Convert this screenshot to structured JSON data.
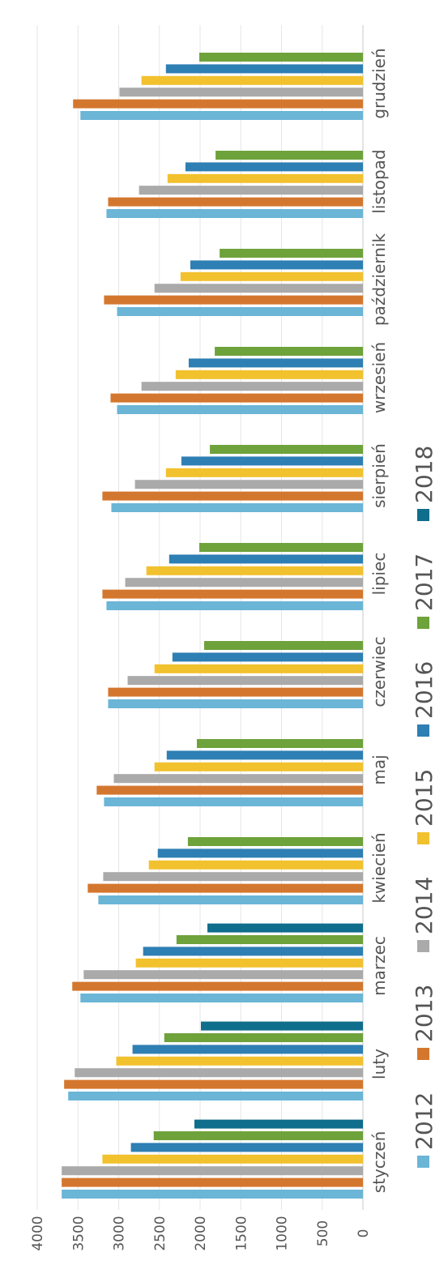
{
  "chart_data": {
    "type": "bar",
    "orientation": "horizontal",
    "categories": [
      "styczeń",
      "luty",
      "marzec",
      "kwiecień",
      "maj",
      "czerwiec",
      "lipiec",
      "sierpień",
      "wrzesień",
      "październik",
      "listopad",
      "grudzień"
    ],
    "series": [
      {
        "name": "2012",
        "color": "#6bb5d6",
        "values": [
          3700,
          3620,
          3470,
          3250,
          3180,
          3130,
          3150,
          3090,
          3020,
          3020,
          3150,
          3470
        ]
      },
      {
        "name": "2013",
        "color": "#d4772e",
        "values": [
          3700,
          3670,
          3570,
          3380,
          3270,
          3130,
          3200,
          3200,
          3100,
          3180,
          3130,
          3560
        ]
      },
      {
        "name": "2014",
        "color": "#aaaaaa",
        "values": [
          3700,
          3540,
          3430,
          3190,
          3060,
          2890,
          2920,
          2800,
          2720,
          2560,
          2750,
          2990
        ]
      },
      {
        "name": "2015",
        "color": "#f2c12e",
        "values": [
          3200,
          3030,
          2790,
          2630,
          2560,
          2560,
          2660,
          2420,
          2300,
          2240,
          2400,
          2720
        ]
      },
      {
        "name": "2016",
        "color": "#2e7fb3",
        "values": [
          2850,
          2830,
          2700,
          2520,
          2410,
          2340,
          2380,
          2230,
          2140,
          2120,
          2180,
          2420
        ]
      },
      {
        "name": "2017",
        "color": "#6ea23b",
        "values": [
          2570,
          2440,
          2290,
          2150,
          2040,
          1950,
          2010,
          1880,
          1820,
          1760,
          1810,
          2010
        ]
      },
      {
        "name": "2018",
        "color": "#0f6e8c",
        "values": [
          2070,
          1990,
          1910,
          null,
          null,
          null,
          null,
          null,
          null,
          null,
          null,
          null
        ]
      }
    ],
    "xlim": [
      0,
      4000
    ],
    "ticks": [
      "0",
      "500",
      "1000",
      "1500",
      "2000",
      "2500",
      "3000",
      "3500",
      "4000"
    ],
    "grid": true,
    "legend": "bottom"
  }
}
